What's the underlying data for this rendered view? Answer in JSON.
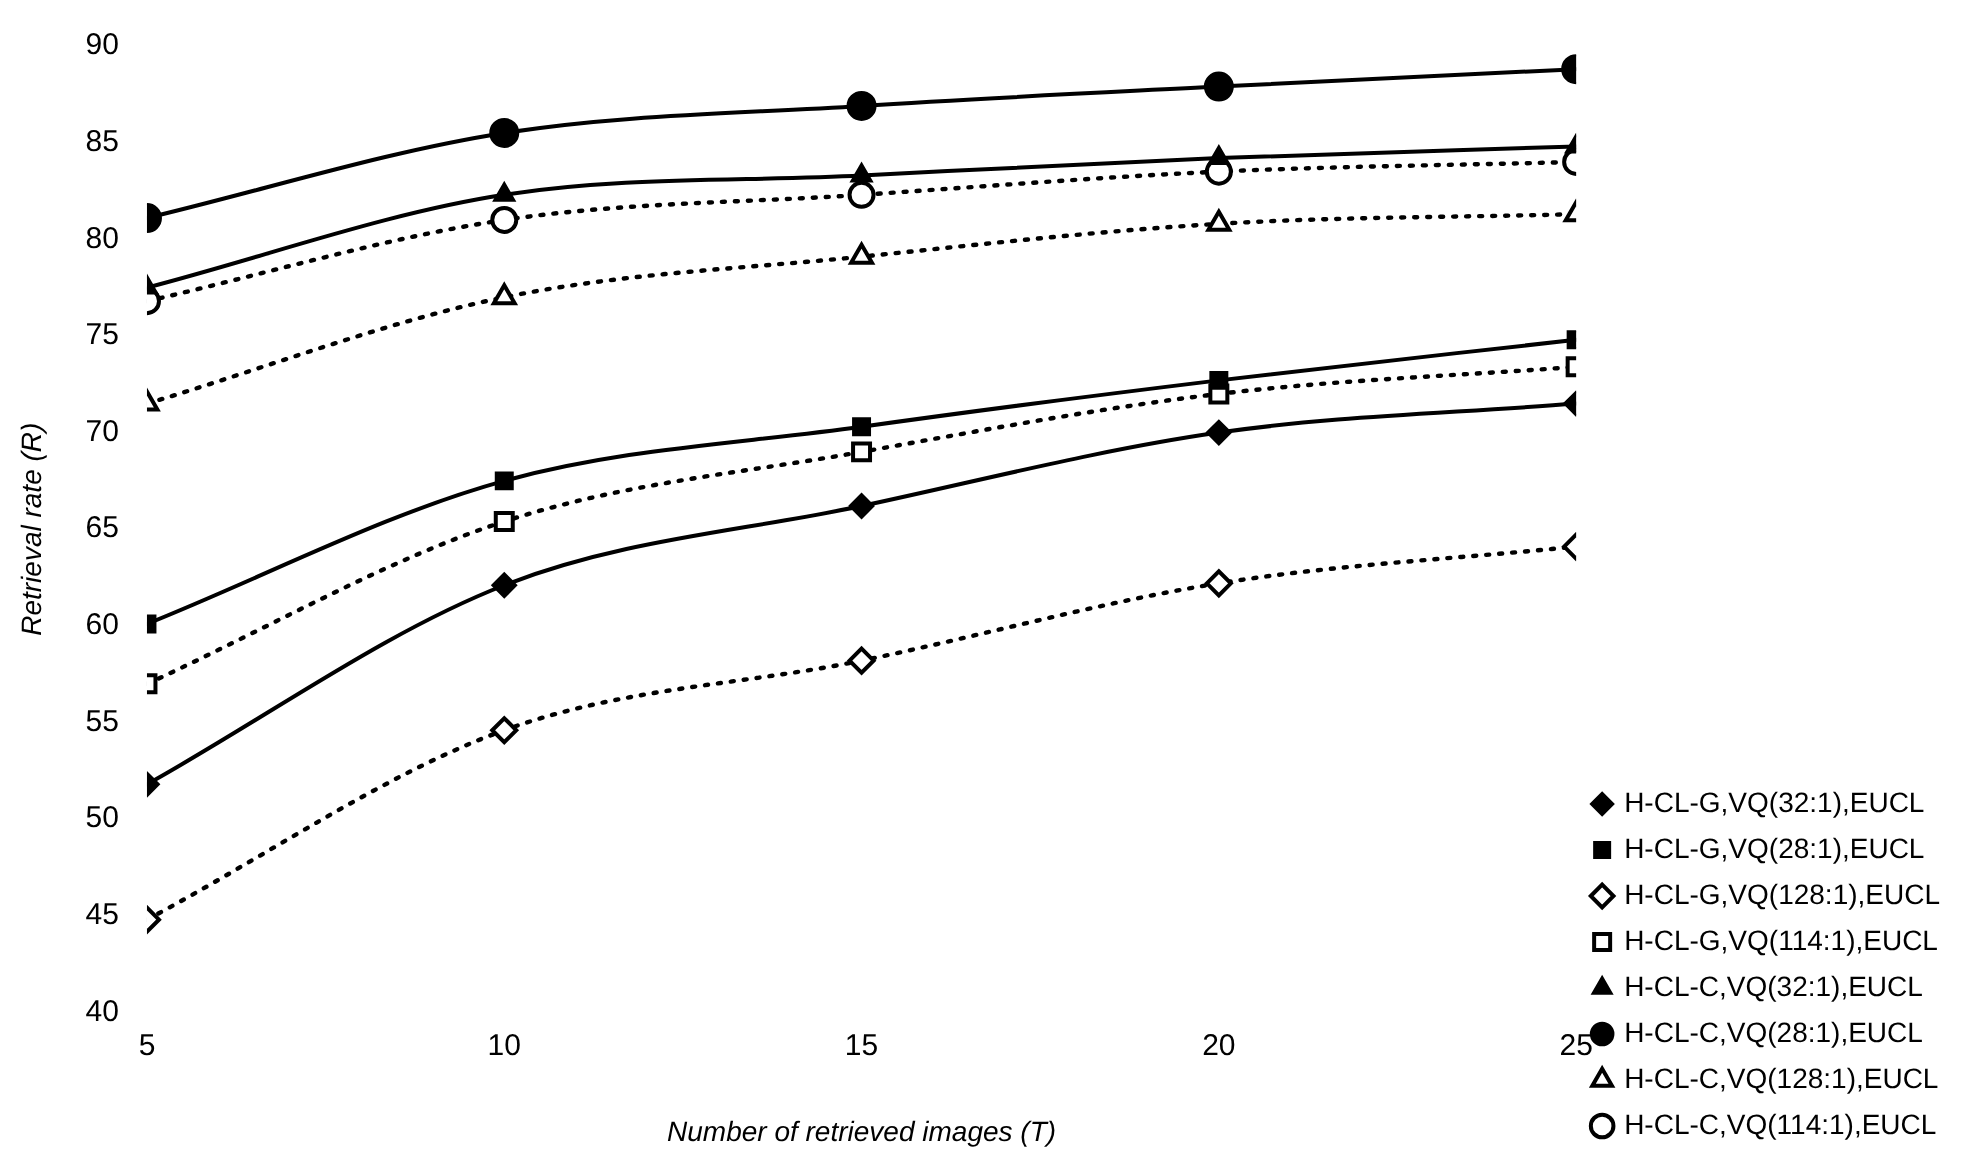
{
  "chart_data": {
    "type": "line",
    "xlabel": "Number of retrieved images (T)",
    "ylabel": "Retrieval rate (R)",
    "x": [
      5,
      10,
      15,
      20,
      25
    ],
    "xlim": [
      5,
      25
    ],
    "xticks": [
      5,
      10,
      15,
      20,
      25
    ],
    "ylim": [
      40,
      90
    ],
    "yticks": [
      40,
      45,
      50,
      55,
      60,
      65,
      70,
      75,
      80,
      85,
      90
    ],
    "grid": false,
    "legend": "right",
    "series": [
      {
        "name": "H-CL-G,VQ(32:1),EUCL",
        "color": "#000000",
        "marker": "diamond",
        "line_style": "solid",
        "values": [
          51.8,
          62.1,
          66.2,
          70,
          71.5
        ]
      },
      {
        "name": "H-CL-G,VQ(28:1),EUCL",
        "color": "#000000",
        "marker": "square",
        "line_style": "solid",
        "values": [
          60.1,
          67.5,
          70.3,
          72.7,
          74.8
        ]
      },
      {
        "name": "H-CL-G,VQ(128:1),EUCL",
        "color": "#000000",
        "marker": "diamond",
        "line_style": "dotted",
        "values": [
          44.8,
          54.6,
          58.2,
          62.2,
          64.1
        ]
      },
      {
        "name": "H-CL-G,VQ(114:1),EUCL",
        "color": "#000000",
        "marker": "square",
        "line_style": "dotted",
        "values": [
          57,
          65.4,
          69,
          72,
          73.4
        ]
      },
      {
        "name": "H-CL-C,VQ(32:1),EUCL",
        "color": "#000000",
        "marker": "triangle",
        "line_style": "solid",
        "values": [
          77.5,
          82.3,
          83.3,
          84.2,
          84.8
        ]
      },
      {
        "name": "H-CL-C,VQ(28:1),EUCL",
        "color": "#000000",
        "marker": "circle",
        "line_style": "solid",
        "values": [
          81.1,
          85.5,
          86.9,
          87.9,
          88.8
        ]
      },
      {
        "name": "H-CL-C,VQ(128:1),EUCL",
        "color": "#000000",
        "marker": "triangle",
        "line_style": "dotted",
        "values": [
          71.5,
          77,
          79.1,
          80.8,
          81.3
        ]
      },
      {
        "name": "H-CL-C,VQ(114:1),EUCL",
        "color": "#000000",
        "marker": "circle",
        "line_style": "dotted",
        "values": [
          76.8,
          81,
          82.3,
          83.5,
          84
        ]
      }
    ]
  }
}
